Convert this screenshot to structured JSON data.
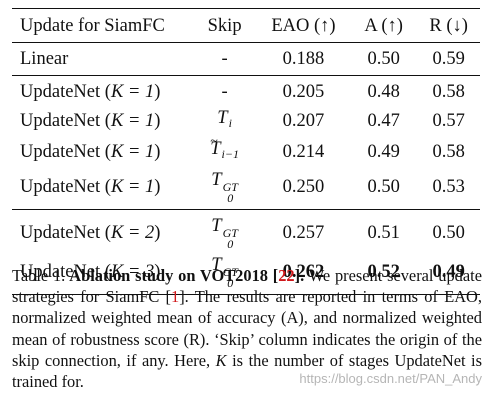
{
  "table": {
    "headers": {
      "method": "Update for SiamFC",
      "skip": "Skip",
      "eao": "EAO (↑)",
      "a": "A (↑)",
      "r": "R (↓)"
    },
    "rows": [
      {
        "method": "Linear",
        "skip": "-",
        "eao": "0.188",
        "a": "0.50",
        "r": "0.59"
      },
      {
        "method_name": "UpdateNet",
        "k": "K = 1",
        "skip": "-",
        "eao": "0.205",
        "a": "0.48",
        "r": "0.58"
      },
      {
        "method_name": "UpdateNet",
        "k": "K = 1",
        "skip_base": "T",
        "skip_sub": "i",
        "eao": "0.207",
        "a": "0.47",
        "r": "0.57"
      },
      {
        "method_name": "UpdateNet",
        "k": "K = 1",
        "skip_base": "T",
        "skip_sub": "i−1",
        "eao": "0.214",
        "a": "0.49",
        "r": "0.58"
      },
      {
        "method_name": "UpdateNet",
        "k": "K = 1",
        "skip_base": "T",
        "skip_sub": "0",
        "skip_sup": "GT",
        "eao": "0.250",
        "a": "0.50",
        "r": "0.53"
      },
      {
        "method_name": "UpdateNet",
        "k": "K = 2",
        "skip_base": "T",
        "skip_sub": "0",
        "skip_sup": "GT",
        "eao": "0.257",
        "a": "0.51",
        "r": "0.50"
      },
      {
        "method_name": "UpdateNet",
        "k": "K = 3",
        "skip_base": "T",
        "skip_sub": "0",
        "skip_sup": "GT",
        "eao": "0.262",
        "a": "0.52",
        "r": "0.49"
      }
    ]
  },
  "caption": {
    "label": "Table 1.",
    "bold_title_1": "Ablation study on VOT2018 [",
    "bold_cite": "22",
    "bold_title_2": "].",
    "text_1": "We present several update strategies for SiamFC [",
    "cite_1": "1",
    "text_2": "]. The results are reported in terms of EAO, normalized weighted mean of accuracy (A), and normalized weighted mean of robustness score (R). ‘Skip’ column indicates the origin of the skip connection, if any. Here, ",
    "k_var": "K",
    "text_3": " is the number of stages UpdateNet is trained for."
  },
  "watermark": "https://blog.csdn.net/PAN_Andy"
}
